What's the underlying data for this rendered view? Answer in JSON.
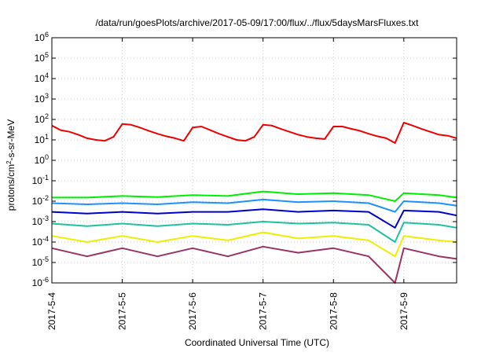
{
  "chart_data": {
    "type": "line",
    "title": "/data/run/goesPlots/archive/2017-05-09/17:00/flux/../flux/5daysMarsFluxes.txt",
    "xlabel": "Coordinated Universal Time (UTC)",
    "ylabel": "protons/cm²-s-sr-MeV",
    "ylabel_parts": {
      "pre": "protons/cm",
      "sup": "2",
      "post": "-s-sr-MeV"
    },
    "yscale": "log",
    "ylim": [
      1e-06,
      1000000.0
    ],
    "y_ticks": [
      {
        "value": 1000000.0,
        "base": "10",
        "exp": "6"
      },
      {
        "value": 100000.0,
        "base": "10",
        "exp": "5"
      },
      {
        "value": 10000.0,
        "base": "10",
        "exp": "4"
      },
      {
        "value": 1000.0,
        "base": "10",
        "exp": "3"
      },
      {
        "value": 100.0,
        "base": "10",
        "exp": "2"
      },
      {
        "value": 10.0,
        "base": "10",
        "exp": "1"
      },
      {
        "value": 1.0,
        "base": "10",
        "exp": "0"
      },
      {
        "value": 0.1,
        "base": "10",
        "exp": "-1"
      },
      {
        "value": 0.01,
        "base": "10",
        "exp": "-2"
      },
      {
        "value": 0.001,
        "base": "10",
        "exp": "-3"
      },
      {
        "value": 0.0001,
        "base": "10",
        "exp": "-4"
      },
      {
        "value": 1e-05,
        "base": "10",
        "exp": "-5"
      },
      {
        "value": 1e-06,
        "base": "10",
        "exp": "-6"
      }
    ],
    "xlim": [
      "2017-05-04 00:00",
      "2017-05-09 18:00"
    ],
    "x_ticks": [
      {
        "value": "2017-05-04 00:00",
        "label": "2017-5-4"
      },
      {
        "value": "2017-05-05 00:00",
        "label": "2017-5-5"
      },
      {
        "value": "2017-05-06 00:00",
        "label": "2017-5-6"
      },
      {
        "value": "2017-05-07 00:00",
        "label": "2017-5-7"
      },
      {
        "value": "2017-05-08 00:00",
        "label": "2017-5-8"
      },
      {
        "value": "2017-05-09 00:00",
        "label": "2017-5-9"
      }
    ],
    "grid": true,
    "series": [
      {
        "color": "#ee0000",
        "points": [
          [
            "2017-05-04 00:00",
            50
          ],
          [
            "2017-05-04 03:00",
            30
          ],
          [
            "2017-05-04 06:00",
            25
          ],
          [
            "2017-05-04 09:00",
            18
          ],
          [
            "2017-05-04 12:00",
            12
          ],
          [
            "2017-05-04 15:00",
            10
          ],
          [
            "2017-05-04 18:00",
            9
          ],
          [
            "2017-05-04 21:00",
            14
          ],
          [
            "2017-05-05 00:00",
            60
          ],
          [
            "2017-05-05 03:00",
            55
          ],
          [
            "2017-05-05 06:00",
            40
          ],
          [
            "2017-05-05 09:00",
            28
          ],
          [
            "2017-05-05 12:00",
            20
          ],
          [
            "2017-05-05 15:00",
            15
          ],
          [
            "2017-05-05 18:00",
            12
          ],
          [
            "2017-05-05 21:00",
            9
          ],
          [
            "2017-05-06 00:00",
            40
          ],
          [
            "2017-05-06 03:00",
            45
          ],
          [
            "2017-05-06 06:00",
            30
          ],
          [
            "2017-05-06 09:00",
            20
          ],
          [
            "2017-05-06 12:00",
            14
          ],
          [
            "2017-05-06 15:00",
            10
          ],
          [
            "2017-05-06 18:00",
            9
          ],
          [
            "2017-05-06 21:00",
            14
          ],
          [
            "2017-05-07 00:00",
            55
          ],
          [
            "2017-05-07 03:00",
            50
          ],
          [
            "2017-05-07 06:00",
            35
          ],
          [
            "2017-05-07 09:00",
            25
          ],
          [
            "2017-05-07 12:00",
            18
          ],
          [
            "2017-05-07 15:00",
            14
          ],
          [
            "2017-05-07 18:00",
            12
          ],
          [
            "2017-05-07 21:00",
            11
          ],
          [
            "2017-05-08 00:00",
            45
          ],
          [
            "2017-05-08 03:00",
            45
          ],
          [
            "2017-05-08 06:00",
            35
          ],
          [
            "2017-05-08 09:00",
            28
          ],
          [
            "2017-05-08 12:00",
            20
          ],
          [
            "2017-05-08 15:00",
            15
          ],
          [
            "2017-05-08 18:00",
            12
          ],
          [
            "2017-05-08 21:00",
            7
          ],
          [
            "2017-05-09 00:00",
            70
          ],
          [
            "2017-05-09 03:00",
            50
          ],
          [
            "2017-05-09 06:00",
            35
          ],
          [
            "2017-05-09 09:00",
            25
          ],
          [
            "2017-05-09 12:00",
            18
          ],
          [
            "2017-05-09 15:00",
            16
          ],
          [
            "2017-05-09 18:00",
            12
          ]
        ]
      },
      {
        "color": "#00ee00",
        "points": [
          [
            "2017-05-04 00:00",
            0.015
          ],
          [
            "2017-05-04 12:00",
            0.015
          ],
          [
            "2017-05-05 00:00",
            0.018
          ],
          [
            "2017-05-05 12:00",
            0.016
          ],
          [
            "2017-05-06 00:00",
            0.02
          ],
          [
            "2017-05-06 12:00",
            0.018
          ],
          [
            "2017-05-07 00:00",
            0.03
          ],
          [
            "2017-05-07 12:00",
            0.022
          ],
          [
            "2017-05-08 00:00",
            0.025
          ],
          [
            "2017-05-08 12:00",
            0.02
          ],
          [
            "2017-05-08 21:00",
            0.01
          ],
          [
            "2017-05-09 00:00",
            0.025
          ],
          [
            "2017-05-09 12:00",
            0.02
          ],
          [
            "2017-05-09 18:00",
            0.015
          ]
        ]
      },
      {
        "color": "#1e90ff",
        "points": [
          [
            "2017-05-04 00:00",
            0.008
          ],
          [
            "2017-05-04 12:00",
            0.007
          ],
          [
            "2017-05-05 00:00",
            0.008
          ],
          [
            "2017-05-05 12:00",
            0.007
          ],
          [
            "2017-05-06 00:00",
            0.009
          ],
          [
            "2017-05-06 12:00",
            0.008
          ],
          [
            "2017-05-07 00:00",
            0.012
          ],
          [
            "2017-05-07 12:00",
            0.009
          ],
          [
            "2017-05-08 00:00",
            0.01
          ],
          [
            "2017-05-08 12:00",
            0.008
          ],
          [
            "2017-05-08 21:00",
            0.003
          ],
          [
            "2017-05-09 00:00",
            0.01
          ],
          [
            "2017-05-09 12:00",
            0.008
          ],
          [
            "2017-05-09 18:00",
            0.006
          ]
        ]
      },
      {
        "color": "#0000cc",
        "points": [
          [
            "2017-05-04 00:00",
            0.003
          ],
          [
            "2017-05-04 12:00",
            0.0025
          ],
          [
            "2017-05-05 00:00",
            0.003
          ],
          [
            "2017-05-05 12:00",
            0.0025
          ],
          [
            "2017-05-06 00:00",
            0.003
          ],
          [
            "2017-05-06 12:00",
            0.003
          ],
          [
            "2017-05-07 00:00",
            0.004
          ],
          [
            "2017-05-07 12:00",
            0.003
          ],
          [
            "2017-05-08 00:00",
            0.0035
          ],
          [
            "2017-05-08 12:00",
            0.003
          ],
          [
            "2017-05-08 21:00",
            0.0005
          ],
          [
            "2017-05-09 00:00",
            0.0035
          ],
          [
            "2017-05-09 12:00",
            0.003
          ],
          [
            "2017-05-09 18:00",
            0.002
          ]
        ]
      },
      {
        "color": "#20c0a0",
        "points": [
          [
            "2017-05-04 00:00",
            0.0008
          ],
          [
            "2017-05-04 12:00",
            0.0006
          ],
          [
            "2017-05-05 00:00",
            0.0008
          ],
          [
            "2017-05-05 12:00",
            0.0006
          ],
          [
            "2017-05-06 00:00",
            0.0008
          ],
          [
            "2017-05-06 12:00",
            0.0007
          ],
          [
            "2017-05-07 00:00",
            0.001
          ],
          [
            "2017-05-07 12:00",
            0.0008
          ],
          [
            "2017-05-08 00:00",
            0.0009
          ],
          [
            "2017-05-08 12:00",
            0.0007
          ],
          [
            "2017-05-08 21:00",
            0.0001
          ],
          [
            "2017-05-09 00:00",
            0.0009
          ],
          [
            "2017-05-09 12:00",
            0.0007
          ],
          [
            "2017-05-09 18:00",
            0.0005
          ]
        ]
      },
      {
        "color": "#eeee00",
        "points": [
          [
            "2017-05-04 00:00",
            0.0002
          ],
          [
            "2017-05-04 12:00",
            0.0001
          ],
          [
            "2017-05-05 00:00",
            0.0002
          ],
          [
            "2017-05-05 12:00",
            0.0001
          ],
          [
            "2017-05-06 00:00",
            0.0002
          ],
          [
            "2017-05-06 12:00",
            0.00012
          ],
          [
            "2017-05-07 00:00",
            0.0003
          ],
          [
            "2017-05-07 12:00",
            0.00015
          ],
          [
            "2017-05-08 00:00",
            0.0002
          ],
          [
            "2017-05-08 12:00",
            0.00012
          ],
          [
            "2017-05-08 21:00",
            2e-05
          ],
          [
            "2017-05-09 00:00",
            0.0002
          ],
          [
            "2017-05-09 12:00",
            0.00012
          ],
          [
            "2017-05-09 18:00",
            0.0001
          ]
        ]
      },
      {
        "color": "#993366",
        "points": [
          [
            "2017-05-04 00:00",
            5e-05
          ],
          [
            "2017-05-04 12:00",
            2e-05
          ],
          [
            "2017-05-05 00:00",
            5e-05
          ],
          [
            "2017-05-05 12:00",
            2e-05
          ],
          [
            "2017-05-06 00:00",
            5e-05
          ],
          [
            "2017-05-06 12:00",
            2e-05
          ],
          [
            "2017-05-07 00:00",
            6e-05
          ],
          [
            "2017-05-07 12:00",
            3e-05
          ],
          [
            "2017-05-08 00:00",
            5e-05
          ],
          [
            "2017-05-08 12:00",
            2e-05
          ],
          [
            "2017-05-08 21:00",
            1e-06
          ],
          [
            "2017-05-09 00:00",
            5e-05
          ],
          [
            "2017-05-09 12:00",
            2e-05
          ],
          [
            "2017-05-09 18:00",
            1.5e-05
          ]
        ]
      }
    ]
  }
}
